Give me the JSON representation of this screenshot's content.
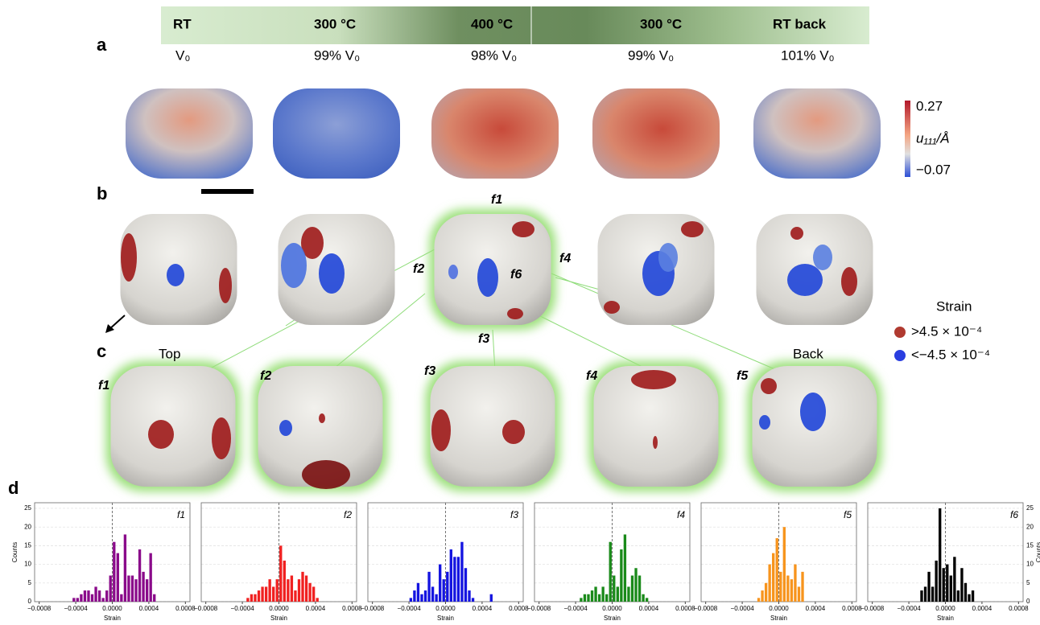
{
  "header": {
    "stages": [
      "RT",
      "300 °C",
      "400 °C",
      "300 °C",
      "RT back"
    ]
  },
  "panel_a": {
    "label": "a",
    "volumes": [
      "V₀",
      "99% V₀",
      "98% V₀",
      "99% V₀",
      "101% V₀"
    ]
  },
  "colorbar": {
    "max": "0.27",
    "label": "u₁₁₁/Å",
    "min": "−0.07"
  },
  "panel_b": {
    "label": "b",
    "faces": [
      "f1",
      "f2",
      "f6",
      "f4",
      "f3"
    ]
  },
  "legend": {
    "title": "Strain",
    "items": [
      ">4.5 × 10⁻⁴",
      "<−4.5 × 10⁻⁴"
    ]
  },
  "panel_c": {
    "label": "c",
    "views": [
      "Top",
      "Back"
    ],
    "faces": [
      "f1",
      "f2",
      "f3",
      "f4",
      "f5"
    ]
  },
  "panel_d": {
    "label": "d"
  },
  "chart_data": [
    {
      "type": "histogram",
      "title": "f1",
      "color": "#8a0a8a",
      "xlabel": "Strain",
      "ylabel": "Counts",
      "yaxis_side": "left",
      "bins": [
        -0.00048,
        -0.00044,
        -0.0004,
        -0.00036,
        -0.00032,
        -0.00028,
        -0.00024,
        -0.0002,
        -0.00016,
        -0.00012,
        -8e-05,
        -4e-05,
        0,
        4e-05,
        8e-05,
        0.00012,
        0.00016,
        0.0002,
        0.00024,
        0.00028,
        0.00032,
        0.00036,
        0.0004,
        0.00044,
        0.00048,
        0.00052,
        0.00056
      ],
      "values": [
        0,
        1,
        1,
        2,
        3,
        3,
        2,
        4,
        3,
        1,
        3,
        7,
        16,
        13,
        2,
        18,
        7,
        7,
        6,
        14,
        8,
        6,
        13,
        2,
        0,
        0
      ],
      "xlim": [
        -0.00085,
        0.00085
      ],
      "xticks": [
        {
          "value": -0.0008,
          "label": "−0.0008"
        },
        {
          "value": -0.0004,
          "label": "−0.0004"
        },
        {
          "value": 0,
          "label": "0.0000"
        },
        {
          "value": 0.0004,
          "label": "0.0004"
        },
        {
          "value": 0.0008,
          "label": "0.0008"
        }
      ],
      "ylim": [
        0,
        26.5
      ],
      "yticks": [
        0,
        5,
        10,
        15,
        20,
        25
      ]
    },
    {
      "type": "histogram",
      "title": "f2",
      "color": "#f02020",
      "xlabel": "Strain",
      "bins": [
        -0.00048,
        -0.00044,
        -0.0004,
        -0.00036,
        -0.00032,
        -0.00028,
        -0.00024,
        -0.0002,
        -0.00016,
        -0.00012,
        -8e-05,
        -4e-05,
        0,
        4e-05,
        8e-05,
        0.00012,
        0.00016,
        0.0002,
        0.00024,
        0.00028,
        0.00032,
        0.00036,
        0.0004,
        0.00044,
        0.00048,
        0.00052,
        0.00056
      ],
      "values": [
        0,
        0,
        0,
        1,
        2,
        2,
        3,
        4,
        4,
        6,
        4,
        6,
        15,
        11,
        6,
        7,
        3,
        6,
        8,
        7,
        5,
        4,
        1,
        0,
        0,
        0
      ],
      "xlim": [
        -0.00085,
        0.00085
      ],
      "xticks": [
        {
          "value": -0.0008,
          "label": "−0.0008"
        },
        {
          "value": -0.0004,
          "label": "−0.0004"
        },
        {
          "value": 0,
          "label": "0.0000"
        },
        {
          "value": 0.0004,
          "label": "0.0004"
        },
        {
          "value": 0.0008,
          "label": "0.0008"
        }
      ],
      "ylim": [
        0,
        26.5
      ],
      "yticks": [
        0,
        5,
        10,
        15,
        20,
        25
      ]
    },
    {
      "type": "histogram",
      "title": "f3",
      "color": "#1414e0",
      "xlabel": "Strain",
      "bins": [
        -0.00048,
        -0.00044,
        -0.0004,
        -0.00036,
        -0.00032,
        -0.00028,
        -0.00024,
        -0.0002,
        -0.00016,
        -0.00012,
        -8e-05,
        -4e-05,
        0,
        4e-05,
        8e-05,
        0.00012,
        0.00016,
        0.0002,
        0.00024,
        0.00028,
        0.00032,
        0.00036,
        0.0004,
        0.00044,
        0.00048,
        0.00052,
        0.00056
      ],
      "values": [
        0,
        0,
        1,
        3,
        5,
        2,
        3,
        8,
        4,
        2,
        10,
        6,
        8,
        14,
        12,
        12,
        16,
        9,
        3,
        1,
        0,
        0,
        0,
        0,
        2,
        0
      ],
      "xlim": [
        -0.00085,
        0.00085
      ],
      "xticks": [
        {
          "value": -0.0008,
          "label": "−0.0008"
        },
        {
          "value": -0.0004,
          "label": "−0.0004"
        },
        {
          "value": 0,
          "label": "0.0000"
        },
        {
          "value": 0.0004,
          "label": "0.0004"
        },
        {
          "value": 0.0008,
          "label": "0.0008"
        }
      ],
      "ylim": [
        0,
        26.5
      ],
      "yticks": [
        0,
        5,
        10,
        15,
        20,
        25
      ]
    },
    {
      "type": "histogram",
      "title": "f4",
      "color": "#1a8a1a",
      "xlabel": "Strain",
      "bins": [
        -0.00048,
        -0.00044,
        -0.0004,
        -0.00036,
        -0.00032,
        -0.00028,
        -0.00024,
        -0.0002,
        -0.00016,
        -0.00012,
        -8e-05,
        -4e-05,
        0,
        4e-05,
        8e-05,
        0.00012,
        0.00016,
        0.0002,
        0.00024,
        0.00028,
        0.00032,
        0.00036,
        0.0004,
        0.00044,
        0.00048,
        0.00052,
        0.00056
      ],
      "values": [
        0,
        0,
        0,
        1,
        2,
        2,
        3,
        4,
        2,
        4,
        2,
        16,
        7,
        4,
        14,
        18,
        4,
        7,
        9,
        7,
        2,
        1,
        0,
        0,
        0,
        0
      ],
      "xlim": [
        -0.00085,
        0.00085
      ],
      "xticks": [
        {
          "value": -0.0008,
          "label": "−0.0008"
        },
        {
          "value": -0.0004,
          "label": "−0.0004"
        },
        {
          "value": 0,
          "label": "0.0000"
        },
        {
          "value": 0.0004,
          "label": "0.0004"
        },
        {
          "value": 0.0008,
          "label": "0.0008"
        }
      ],
      "ylim": [
        0,
        26.5
      ],
      "yticks": [
        0,
        5,
        10,
        15,
        20,
        25
      ]
    },
    {
      "type": "histogram",
      "title": "f5",
      "color": "#f7941d",
      "xlabel": "Strain",
      "bins": [
        -0.00048,
        -0.00044,
        -0.0004,
        -0.00036,
        -0.00032,
        -0.00028,
        -0.00024,
        -0.0002,
        -0.00016,
        -0.00012,
        -8e-05,
        -4e-05,
        0,
        4e-05,
        8e-05,
        0.00012,
        0.00016,
        0.0002,
        0.00024,
        0.00028,
        0.00032,
        0.00036,
        0.0004,
        0.00044,
        0.00048,
        0.00052,
        0.00056
      ],
      "values": [
        0,
        0,
        0,
        0,
        0,
        0,
        1,
        3,
        5,
        10,
        13,
        17,
        8,
        20,
        7,
        6,
        10,
        4,
        8,
        0,
        0,
        0,
        0,
        0,
        0,
        0
      ],
      "xlim": [
        -0.00085,
        0.00085
      ],
      "xticks": [
        {
          "value": -0.0008,
          "label": "−0.0008"
        },
        {
          "value": -0.0004,
          "label": "−0.0004"
        },
        {
          "value": 0,
          "label": "0.0000"
        },
        {
          "value": 0.0004,
          "label": "0.0004"
        },
        {
          "value": 0.0008,
          "label": "0.0008"
        }
      ],
      "ylim": [
        0,
        26.5
      ],
      "yticks": [
        0,
        5,
        10,
        15,
        20,
        25
      ]
    },
    {
      "type": "histogram",
      "title": "f6",
      "color": "#000000",
      "xlabel": "Strain",
      "ylabel": "Counts",
      "yaxis_side": "right",
      "bins": [
        -0.00048,
        -0.00044,
        -0.0004,
        -0.00036,
        -0.00032,
        -0.00028,
        -0.00024,
        -0.0002,
        -0.00016,
        -0.00012,
        -8e-05,
        -4e-05,
        0,
        4e-05,
        8e-05,
        0.00012,
        0.00016,
        0.0002,
        0.00024,
        0.00028,
        0.00032,
        0.00036,
        0.0004,
        0.00044,
        0.00048,
        0.00052,
        0.00056
      ],
      "values": [
        0,
        0,
        0,
        0,
        0,
        3,
        4,
        8,
        4,
        11,
        25,
        9,
        10,
        7,
        12,
        3,
        9,
        5,
        2,
        3,
        0,
        0,
        0,
        0,
        0,
        0
      ],
      "xlim": [
        -0.00085,
        0.00085
      ],
      "xticks": [
        {
          "value": -0.0008,
          "label": "−0.0008"
        },
        {
          "value": -0.0004,
          "label": "−0.0004"
        },
        {
          "value": 0,
          "label": "0.0000"
        },
        {
          "value": 0.0004,
          "label": "0.0004"
        },
        {
          "value": 0.0008,
          "label": "0.0008"
        }
      ],
      "ylim": [
        0,
        26.5
      ],
      "yticks": [
        0,
        5,
        10,
        15,
        20,
        25
      ]
    }
  ]
}
